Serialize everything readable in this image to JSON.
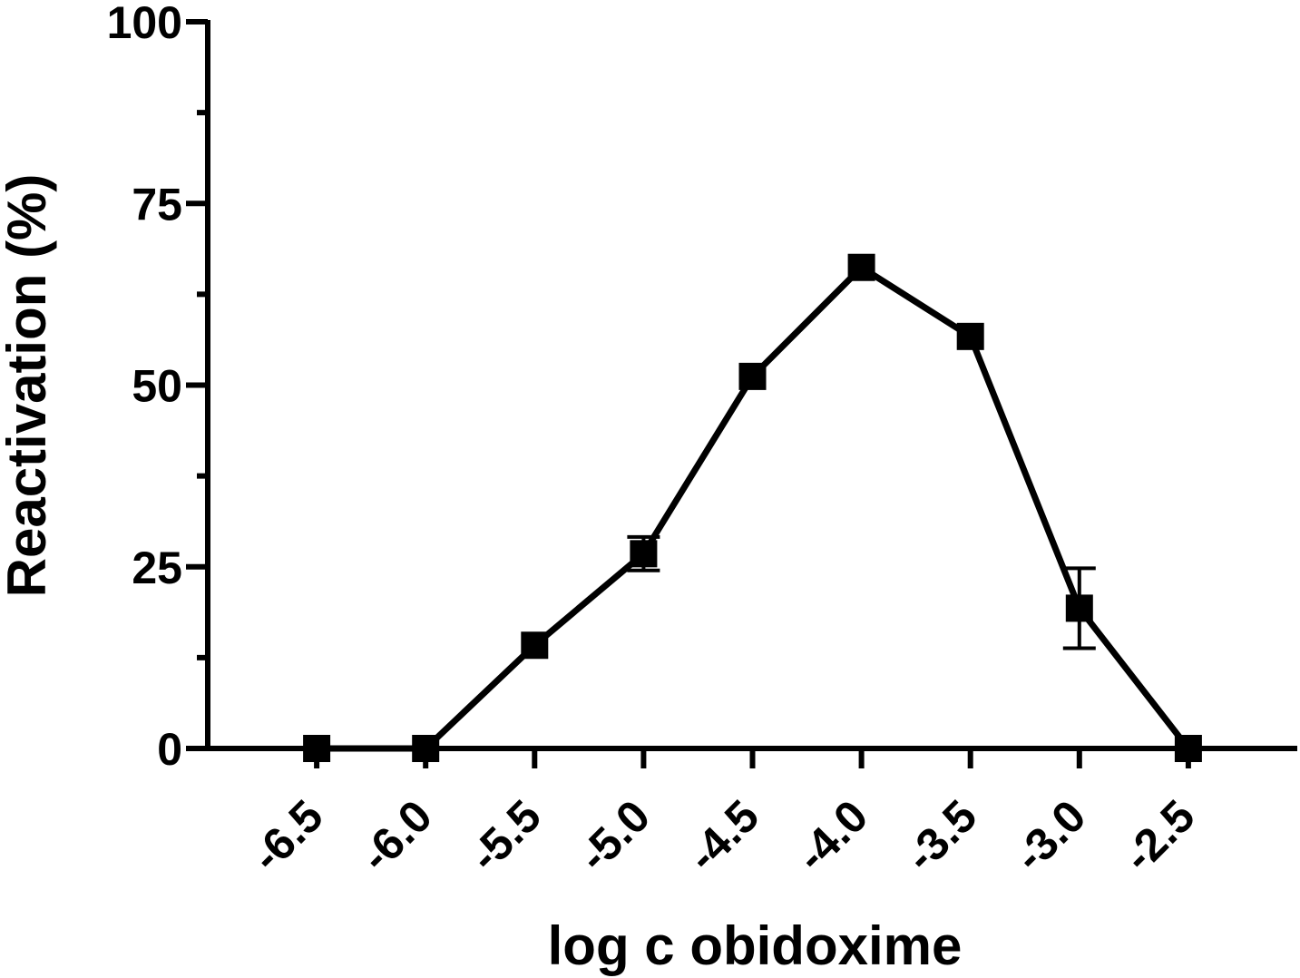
{
  "chart_data": {
    "type": "line",
    "title": "",
    "xlabel": "log c obidoxime",
    "ylabel": "Reactivation (%)",
    "xlim": [
      -7.0,
      -2.0
    ],
    "ylim": [
      0,
      100
    ],
    "yticks": [
      {
        "value": 0,
        "label": "0"
      },
      {
        "value": 25,
        "label": "25"
      },
      {
        "value": 50,
        "label": "50"
      },
      {
        "value": 75,
        "label": "75"
      },
      {
        "value": 100,
        "label": "100"
      }
    ],
    "yminor": [
      12.5,
      37.5,
      62.5,
      87.5
    ],
    "xticks": [
      {
        "value": -6.5,
        "label": "-6.5"
      },
      {
        "value": -6.0,
        "label": "-6.0"
      },
      {
        "value": -5.5,
        "label": "-5.5"
      },
      {
        "value": -5.0,
        "label": "-5.0"
      },
      {
        "value": -4.5,
        "label": "-4.5"
      },
      {
        "value": -4.0,
        "label": "-4.0"
      },
      {
        "value": -3.5,
        "label": "-3.5"
      },
      {
        "value": -3.0,
        "label": "-3.0"
      },
      {
        "value": -2.5,
        "label": "-2.5"
      }
    ],
    "grid": false,
    "legend": "none",
    "marker": "square",
    "color": "#000000",
    "series": [
      {
        "x": [
          -6.5,
          -6.0,
          -5.5,
          -5.0,
          -4.5,
          -4.0,
          -3.5,
          -3.0,
          -2.5
        ],
        "y": [
          0,
          0,
          14.2,
          26.8,
          51.2,
          66.2,
          56.7,
          19.3,
          0
        ],
        "error": [
          0,
          0,
          0.5,
          2.3,
          0.5,
          0.5,
          0.5,
          5.5,
          0
        ]
      }
    ]
  }
}
